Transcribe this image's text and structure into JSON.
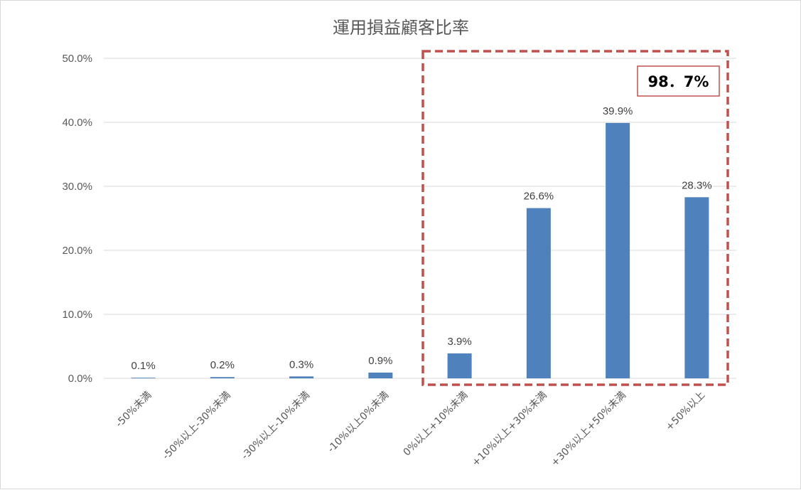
{
  "chart_data": {
    "type": "bar",
    "title": "運用損益顧客比率",
    "categories": [
      "-50%未満",
      "-50%以上-30%未満",
      "-30%以上-10%未満",
      "-10%以上0%未満",
      "0%以上+10%未満",
      "+10%以上+30%未満",
      "+30%以上+50%未満",
      "+50%以上"
    ],
    "values": [
      0.1,
      0.2,
      0.3,
      0.9,
      3.9,
      26.6,
      39.9,
      28.3
    ],
    "data_labels": [
      "0.1%",
      "0.2%",
      "0.3%",
      "0.9%",
      "3.9%",
      "26.6%",
      "39.9%",
      "28.3%"
    ],
    "y_ticks": [
      0,
      10,
      20,
      30,
      40,
      50
    ],
    "y_tick_labels": [
      "0.0%",
      "10.0%",
      "20.0%",
      "30.0%",
      "40.0%",
      "50.0%"
    ],
    "ylim": [
      0,
      50
    ],
    "xlabel": "",
    "ylabel": "",
    "grid": true,
    "legend": "none",
    "bar_color": "#4f81bd",
    "highlight": {
      "label": "98．7%",
      "categories": [
        "0%以上+10%未満",
        "+10%以上+30%未満",
        "+30%以上+50%未満",
        "+50%以上"
      ],
      "border_color": "#c0504d",
      "style": "dashed"
    }
  }
}
